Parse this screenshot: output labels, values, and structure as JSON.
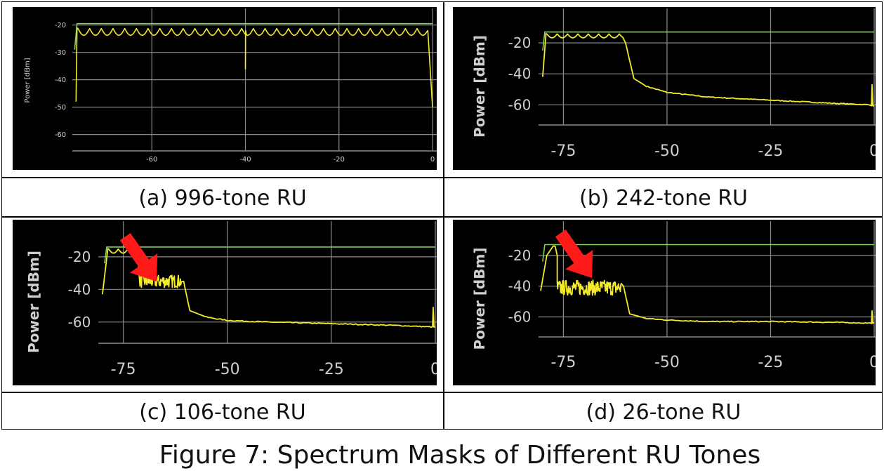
{
  "figure_caption": "Figure 7: Spectrum Masks of Different RU Tones",
  "panels": [
    {
      "caption": "(a) 996-tone RU",
      "ylabel": "Power [dBm]"
    },
    {
      "caption": "(b) 242-tone RU",
      "ylabel": "Power [dBm]"
    },
    {
      "caption": "(c) 106-tone RU",
      "ylabel": "Power [dBm]"
    },
    {
      "caption": "(d) 26-tone RU",
      "ylabel": "Power [dBm]"
    }
  ],
  "colors": {
    "background": "#000000",
    "trace": "#f2ea2a",
    "mask": "#7fd35a",
    "grid": "#8a8a8a",
    "arrow": "#ff1a1a",
    "label": "#cfcfcf"
  },
  "chart_data": [
    {
      "type": "line",
      "title": "(a) 996-tone RU",
      "ylabel": "Power [dBm]",
      "xticks": [
        -60,
        -40,
        -20,
        0
      ],
      "yticks": [
        -20,
        -30,
        -40,
        -50,
        -60
      ],
      "xlim": [
        -77,
        0
      ],
      "ylim": [
        -66,
        -17
      ],
      "grid": true,
      "series": [
        {
          "kind": "mask",
          "x": [
            -76.5,
            -76,
            0
          ],
          "y": [
            -29,
            -19.5,
            -19.5
          ]
        },
        {
          "kind": "trace",
          "shape": "ripple",
          "flat_level": -22,
          "ripple_amplitude": 2.5,
          "ripple_period": 2.5,
          "x_start": -76.2,
          "x_flat_start": -75.8,
          "x_flat_end": -1.5,
          "x_end": 0,
          "start_level": -48,
          "end_level": -50,
          "spike": {
            "x": -40,
            "y": -36
          }
        }
      ]
    },
    {
      "type": "line",
      "title": "(b) 242-tone RU",
      "ylabel": "Power [dBm]",
      "xticks": [
        -75,
        -50,
        -25,
        0
      ],
      "yticks": [
        -20,
        -40,
        -60
      ],
      "xlim": [
        -81,
        0
      ],
      "ylim": [
        -73,
        -5
      ],
      "grid": true,
      "series": [
        {
          "kind": "mask",
          "x": [
            -80,
            -79.5,
            0
          ],
          "y": [
            -25,
            -13,
            -13
          ]
        },
        {
          "kind": "trace",
          "shape": "ripple",
          "flat_level": -15,
          "ripple_amplitude": 2.5,
          "ripple_period": 2.5,
          "x_start": -80,
          "x_flat_start": -79,
          "x_flat_end": -60.5,
          "x_end": 0,
          "start_level": -42,
          "tail": {
            "x": [
              -60,
              -58,
              -55,
              -50,
              -40,
              -25,
              -10,
              -1,
              0
            ],
            "y": [
              -20,
              -43,
              -48,
              -52,
              -55,
              -57,
              -59,
              -60,
              -61
            ]
          },
          "spike": {
            "x": -0.5,
            "y": -47
          }
        }
      ]
    },
    {
      "type": "line",
      "title": "(c) 106-tone RU",
      "ylabel": "Power [dBm]",
      "xticks": [
        -75,
        -50,
        -25,
        0
      ],
      "yticks": [
        -20,
        -40,
        -60
      ],
      "xlim": [
        -81,
        0
      ],
      "ylim": [
        -73,
        -5
      ],
      "grid": true,
      "series": [
        {
          "kind": "mask",
          "x": [
            -79.5,
            -79,
            0
          ],
          "y": [
            -24,
            -14,
            -14
          ]
        },
        {
          "kind": "trace",
          "shape": "ripple",
          "flat_level": -16,
          "ripple_amplitude": 2.5,
          "ripple_period": 2.3,
          "x_start": -80,
          "x_flat_start": -78.5,
          "x_flat_end": -71.5,
          "x_end": 0,
          "start_level": -43,
          "noise_band": {
            "x_start": -71,
            "x_end": -61,
            "level": -35,
            "amplitude": 4
          },
          "tail": {
            "x": [
              -60.5,
              -59,
              -55,
              -50,
              -40,
              -25,
              -10,
              -1,
              0
            ],
            "y": [
              -35,
              -53,
              -57,
              -59,
              -60,
              -61,
              -62,
              -63,
              -63
            ]
          },
          "spike": {
            "x": -0.5,
            "y": -51
          }
        }
      ]
    },
    {
      "type": "line",
      "title": "(d) 26-tone RU",
      "ylabel": "Power [dBm]",
      "xticks": [
        -75,
        -50,
        -25,
        0
      ],
      "yticks": [
        -20,
        -40,
        -60
      ],
      "xlim": [
        -81,
        0
      ],
      "ylim": [
        -73,
        -5
      ],
      "grid": true,
      "series": [
        {
          "kind": "mask",
          "x": [
            -80,
            -79.5,
            0
          ],
          "y": [
            -24,
            -13,
            -13
          ]
        },
        {
          "kind": "trace",
          "shape": "peak",
          "x": [
            -80.5,
            -79,
            -77.5,
            -77,
            -76.5
          ],
          "y": [
            -43,
            -20,
            -14,
            -14,
            -20
          ],
          "noise_band": {
            "x_start": -76.5,
            "x_end": -61,
            "level": -41,
            "amplitude": 5
          },
          "tail": {
            "x": [
              -60.5,
              -59,
              -55,
              -50,
              -40,
              -25,
              -10,
              -1,
              0
            ],
            "y": [
              -40,
              -58,
              -61,
              -62,
              -63,
              -63,
              -63.5,
              -64,
              -64
            ]
          },
          "spike": {
            "x": -0.5,
            "y": -56
          }
        }
      ]
    }
  ]
}
